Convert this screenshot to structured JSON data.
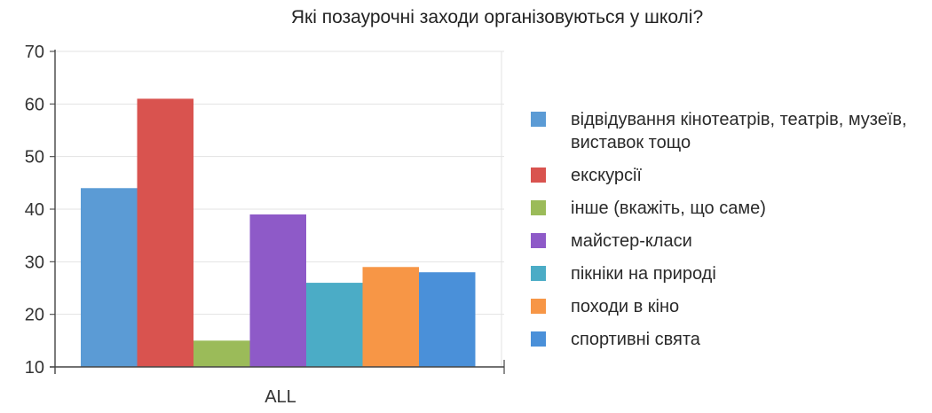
{
  "chart_data": {
    "type": "bar",
    "title": "Які позаурочні заходи організовуються у школі?",
    "xlabel": "",
    "ylabel": "",
    "categories": [
      "ALL"
    ],
    "ylim": [
      10,
      70
    ],
    "yticks": [
      10,
      20,
      30,
      40,
      50,
      60,
      70
    ],
    "grid": true,
    "legend_position": "right",
    "series": [
      {
        "name": "відвідування кінотеатрів, театрів, музеїв, виставок тощо",
        "values": [
          44
        ],
        "color": "#5b9bd5"
      },
      {
        "name": "екскурсії",
        "values": [
          61
        ],
        "color": "#d9534f"
      },
      {
        "name": "інше (вкажіть, що саме)",
        "values": [
          15
        ],
        "color": "#9bbb59"
      },
      {
        "name": "майстер-класи",
        "values": [
          39
        ],
        "color": "#8e5ac8"
      },
      {
        "name": "пікніки на природі",
        "values": [
          26
        ],
        "color": "#4bacc6"
      },
      {
        "name": "походи в кіно",
        "values": [
          29
        ],
        "color": "#f79646"
      },
      {
        "name": "спортивні свята",
        "values": [
          28
        ],
        "color": "#4a90d9"
      }
    ]
  }
}
